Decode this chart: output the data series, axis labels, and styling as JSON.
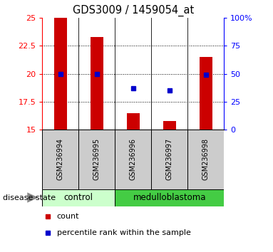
{
  "title": "GDS3009 / 1459054_at",
  "samples": [
    "GSM236994",
    "GSM236995",
    "GSM236996",
    "GSM236997",
    "GSM236998"
  ],
  "bar_values": [
    25.0,
    23.3,
    16.5,
    15.8,
    21.5
  ],
  "percentile_values": [
    50,
    50,
    37,
    35,
    49
  ],
  "ylim_left": [
    15,
    25
  ],
  "ylim_right": [
    0,
    100
  ],
  "yticks_left": [
    15,
    17.5,
    20,
    22.5,
    25
  ],
  "ytick_labels_left": [
    "15",
    "17.5",
    "20",
    "22.5",
    "25"
  ],
  "yticks_right": [
    0,
    25,
    50,
    75,
    100
  ],
  "ytick_labels_right": [
    "0",
    "25",
    "50",
    "75",
    "100%"
  ],
  "bar_color": "#cc0000",
  "percentile_color": "#0000cc",
  "control_color": "#ccffcc",
  "med_color": "#44cc44",
  "group_label": "disease state",
  "legend_count_label": "count",
  "legend_percentile_label": "percentile rank within the sample",
  "sample_box_color": "#cccccc",
  "dotted_ticks": [
    17.5,
    20,
    22.5
  ],
  "bar_width": 0.35
}
